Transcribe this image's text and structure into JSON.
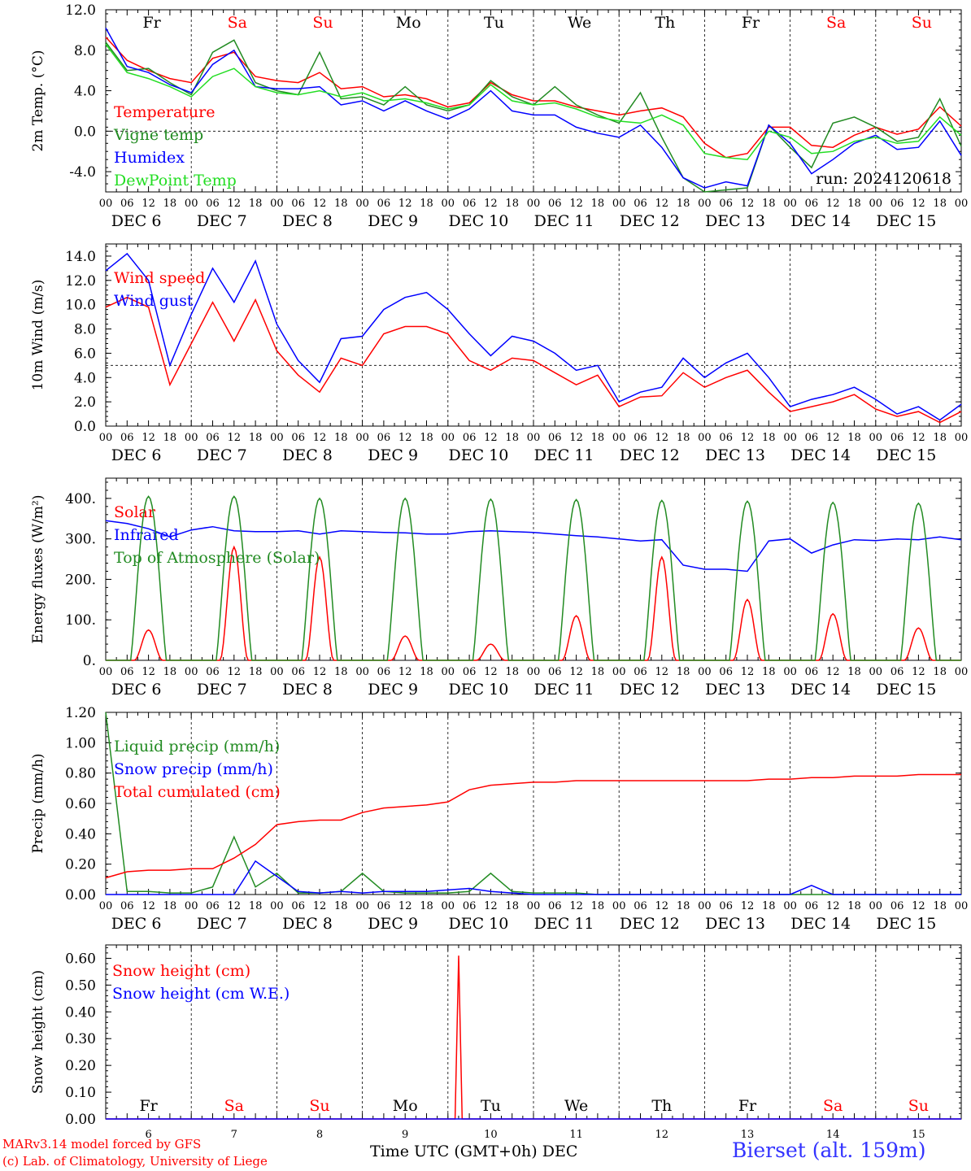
{
  "footer": {
    "model": "MARv3.14 model forced by GFS",
    "lab": "(c) Lab. of Climatology, University of Liege",
    "xlabel": "Time UTC (GMT+0h)",
    "month": "DEC",
    "station": "Bierset (alt. 159m)"
  },
  "run": "run: 2024120618",
  "weekdays": [
    "Fr",
    "Sa",
    "Su",
    "Mo",
    "Tu",
    "We",
    "Th",
    "Fr",
    "Sa",
    "Su"
  ],
  "weekday_colors": [
    "#000000",
    "#ff0000",
    "#ff0000",
    "#000000",
    "#000000",
    "#000000",
    "#000000",
    "#000000",
    "#ff0000",
    "#ff0000"
  ],
  "dates": [
    "DEC  6",
    "DEC  7",
    "DEC  8",
    "DEC  9",
    "DEC 10",
    "DEC 11",
    "DEC 12",
    "DEC 13",
    "DEC 14",
    "DEC 15"
  ],
  "date_numbers": [
    "6",
    "7",
    "8",
    "9",
    "10",
    "11",
    "12",
    "13",
    "14",
    "15"
  ],
  "hour_labels": [
    "00",
    "06",
    "12",
    "18"
  ],
  "chart_data": [
    {
      "type": "line",
      "ylabel": "2m Temp. (°C)",
      "ylim": [
        -6,
        12
      ],
      "yticks": [
        -4,
        0,
        4,
        8,
        12
      ],
      "ytick_labels": [
        "-4.0",
        "0.0",
        "4.0",
        "8.0",
        "12.0"
      ],
      "ref_line": 0,
      "x_hours": [
        0,
        6,
        12,
        18,
        24,
        30,
        36,
        42,
        48,
        54,
        60,
        66,
        72,
        78,
        84,
        90,
        96,
        102,
        108,
        114,
        120,
        126,
        132,
        138,
        144,
        150,
        156,
        162,
        168,
        174,
        180,
        186,
        192,
        198,
        204,
        210,
        216,
        222,
        228,
        234,
        240
      ],
      "series": [
        {
          "name": "Temperature",
          "color": "#ff0000",
          "values": [
            9.3,
            7.0,
            6.0,
            5.2,
            4.8,
            7.2,
            7.8,
            5.4,
            5.0,
            4.8,
            5.8,
            4.2,
            4.4,
            3.4,
            3.6,
            3.2,
            2.4,
            2.8,
            4.8,
            3.6,
            3.0,
            3.0,
            2.4,
            2.0,
            1.6,
            2.0,
            2.3,
            1.4,
            -1.2,
            -2.6,
            -2.2,
            0.4,
            0.4,
            -1.4,
            -1.6,
            -0.4,
            0.4,
            -0.3,
            0.2,
            2.4,
            0.5
          ]
        },
        {
          "name": "Vigne temp",
          "color": "#228b22",
          "values": [
            8.8,
            6.0,
            6.2,
            4.8,
            3.6,
            7.8,
            9.0,
            4.8,
            4.0,
            3.6,
            7.8,
            3.2,
            3.4,
            2.6,
            4.4,
            2.6,
            2.0,
            2.6,
            5.0,
            3.4,
            2.6,
            4.4,
            2.6,
            1.6,
            0.8,
            3.8,
            -0.6,
            -4.6,
            -6.0,
            -5.8,
            -5.6,
            0.6,
            -1.6,
            -3.6,
            0.8,
            1.4,
            0.4,
            -1.0,
            -0.6,
            3.2,
            -1.5
          ]
        },
        {
          "name": "Humidex",
          "color": "#0000ff",
          "values": [
            10.2,
            6.4,
            5.8,
            4.6,
            3.8,
            6.6,
            8.0,
            4.4,
            4.2,
            4.2,
            4.4,
            2.6,
            3.0,
            2.0,
            3.0,
            2.0,
            1.2,
            2.2,
            4.0,
            2.0,
            1.6,
            1.6,
            0.4,
            -0.2,
            -0.6,
            0.6,
            -1.6,
            -4.6,
            -5.6,
            -5.0,
            -5.4,
            0.6,
            -1.2,
            -4.2,
            -2.8,
            -1.2,
            -0.4,
            -1.8,
            -1.6,
            1.0,
            -2.4
          ]
        },
        {
          "name": "DewPoint Temp",
          "color": "#22dd22",
          "values": [
            8.6,
            5.8,
            5.2,
            4.4,
            3.4,
            5.4,
            6.2,
            4.4,
            3.8,
            3.6,
            4.0,
            3.4,
            3.8,
            3.0,
            3.2,
            2.8,
            2.2,
            2.6,
            4.6,
            3.0,
            2.6,
            2.8,
            2.2,
            1.4,
            1.0,
            0.8,
            1.6,
            0.6,
            -2.2,
            -2.6,
            -2.8,
            0.0,
            -0.6,
            -2.2,
            -2.0,
            -1.0,
            -0.6,
            -1.2,
            -1.0,
            1.4,
            -0.4
          ]
        }
      ]
    },
    {
      "type": "line",
      "ylabel": "10m Wind (m/s)",
      "ylim": [
        0,
        15
      ],
      "yticks": [
        0,
        2,
        4,
        6,
        8,
        10,
        12,
        14
      ],
      "ytick_labels": [
        "0.0",
        "2.0",
        "4.0",
        "6.0",
        "8.0",
        "10.0",
        "12.0",
        "14.0"
      ],
      "ref_line": 5,
      "x_hours": [
        0,
        6,
        12,
        18,
        24,
        30,
        36,
        42,
        48,
        54,
        60,
        66,
        72,
        78,
        84,
        90,
        96,
        102,
        108,
        114,
        120,
        126,
        132,
        138,
        144,
        150,
        156,
        162,
        168,
        174,
        180,
        186,
        192,
        198,
        204,
        210,
        216,
        222,
        228,
        234,
        240
      ],
      "series": [
        {
          "name": "Wind speed",
          "color": "#ff0000",
          "values": [
            9.8,
            10.6,
            9.8,
            3.4,
            6.8,
            10.2,
            7.0,
            10.4,
            6.2,
            4.2,
            2.8,
            5.6,
            5.0,
            7.6,
            8.2,
            8.2,
            7.6,
            5.4,
            4.6,
            5.6,
            5.4,
            4.4,
            3.4,
            4.2,
            1.6,
            2.4,
            2.5,
            4.4,
            3.2,
            4.0,
            4.6,
            2.8,
            1.2,
            1.6,
            2.0,
            2.6,
            1.4,
            0.8,
            1.2,
            0.3,
            1.2
          ]
        },
        {
          "name": "Wind gust",
          "color": "#0000ff",
          "values": [
            12.8,
            14.2,
            12.0,
            5.0,
            9.2,
            13.0,
            10.2,
            13.6,
            8.4,
            5.4,
            3.6,
            7.2,
            7.4,
            9.6,
            10.6,
            11.0,
            9.6,
            7.6,
            5.8,
            7.4,
            7.0,
            6.0,
            4.6,
            5.0,
            2.0,
            2.8,
            3.2,
            5.6,
            4.0,
            5.2,
            6.0,
            4.0,
            1.6,
            2.2,
            2.6,
            3.2,
            2.2,
            1.0,
            1.6,
            0.5,
            1.8
          ]
        }
      ]
    },
    {
      "type": "line",
      "ylabel": "Energy fluxes (W/m²)",
      "ylim": [
        0,
        450
      ],
      "yticks": [
        0,
        100,
        200,
        300,
        400
      ],
      "ytick_labels": [
        "0.",
        "100.",
        "200.",
        "300.",
        "400."
      ],
      "infrared_hours": [
        0,
        6,
        12,
        18,
        24,
        30,
        36,
        42,
        48,
        54,
        60,
        66,
        72,
        78,
        84,
        90,
        96,
        102,
        108,
        114,
        120,
        126,
        132,
        138,
        144,
        150,
        156,
        162,
        168,
        174,
        180,
        186,
        192,
        198,
        204,
        210,
        216,
        222,
        228,
        234,
        240
      ],
      "series": [
        {
          "name": "Solar",
          "color": "#ff0000",
          "daily_peaks": [
            75,
            280,
            255,
            60,
            40,
            110,
            255,
            150,
            115,
            80
          ]
        },
        {
          "name": "Infrared",
          "color": "#0000ff",
          "values": [
            345,
            338,
            325,
            305,
            322,
            330,
            320,
            318,
            318,
            320,
            312,
            320,
            318,
            316,
            315,
            312,
            312,
            318,
            320,
            318,
            316,
            312,
            308,
            305,
            300,
            295,
            298,
            235,
            225,
            225,
            220,
            295,
            300,
            265,
            285,
            298,
            296,
            300,
            298,
            305,
            298
          ]
        },
        {
          "name": "Top of Atmosphere (Solar)",
          "color": "#228b22",
          "daily_peaks": [
            405,
            405,
            400,
            400,
            398,
            397,
            395,
            393,
            390,
            388
          ]
        }
      ]
    },
    {
      "type": "line",
      "ylabel": "Precip (mm/h)",
      "ylim": [
        0,
        1.2
      ],
      "yticks": [
        0,
        0.2,
        0.4,
        0.6,
        0.8,
        1.0,
        1.2
      ],
      "ytick_labels": [
        "0.00",
        "0.20",
        "0.40",
        "0.60",
        "0.80",
        "1.00",
        "1.20"
      ],
      "x_hours": [
        0,
        6,
        12,
        18,
        24,
        30,
        36,
        42,
        48,
        54,
        60,
        66,
        72,
        78,
        84,
        90,
        96,
        102,
        108,
        114,
        120,
        126,
        132,
        138,
        144,
        150,
        156,
        162,
        168,
        174,
        180,
        186,
        192,
        198,
        204,
        210,
        216,
        222,
        228,
        234,
        240
      ],
      "series": [
        {
          "name": "Liquid precip (mm/h)",
          "color": "#228b22",
          "values": [
            1.2,
            0.02,
            0.02,
            0.01,
            0.01,
            0.05,
            0.38,
            0.05,
            0.14,
            0.01,
            0.01,
            0.02,
            0.14,
            0.02,
            0.01,
            0.01,
            0.01,
            0.02,
            0.14,
            0.02,
            0.01,
            0.01,
            0.01,
            0.0,
            0.0,
            0.0,
            0.0,
            0.0,
            0.0,
            0.0,
            0.0,
            0.0,
            0.0,
            0.0,
            0.0,
            0.0,
            0.0,
            0.0,
            0.0,
            0.0,
            0.0
          ]
        },
        {
          "name": "Snow precip (mm/h)",
          "color": "#0000ff",
          "values": [
            0.0,
            0.0,
            0.0,
            0.0,
            0.0,
            0.0,
            0.0,
            0.22,
            0.12,
            0.02,
            0.01,
            0.02,
            0.01,
            0.02,
            0.02,
            0.02,
            0.03,
            0.04,
            0.02,
            0.01,
            0.0,
            0.0,
            0.0,
            0.0,
            0.0,
            0.0,
            0.0,
            0.0,
            0.0,
            0.0,
            0.0,
            0.0,
            0.0,
            0.06,
            0.0,
            0.0,
            0.0,
            0.0,
            0.0,
            0.0,
            0.0
          ]
        },
        {
          "name": "Total cumulated (cm)",
          "color": "#ff0000",
          "values": [
            0.11,
            0.15,
            0.16,
            0.16,
            0.17,
            0.17,
            0.24,
            0.33,
            0.46,
            0.48,
            0.49,
            0.49,
            0.54,
            0.57,
            0.58,
            0.59,
            0.61,
            0.69,
            0.72,
            0.73,
            0.74,
            0.74,
            0.75,
            0.75,
            0.75,
            0.75,
            0.75,
            0.75,
            0.75,
            0.75,
            0.75,
            0.76,
            0.76,
            0.77,
            0.77,
            0.78,
            0.78,
            0.78,
            0.79,
            0.79,
            0.79
          ]
        }
      ]
    },
    {
      "type": "line",
      "ylabel": "Snow height (cm)",
      "ylim": [
        0,
        0.65
      ],
      "yticks": [
        0,
        0.1,
        0.2,
        0.3,
        0.4,
        0.5,
        0.6
      ],
      "ytick_labels": [
        "0.00",
        "0.10",
        "0.20",
        "0.30",
        "0.40",
        "0.50",
        "0.60"
      ],
      "series": [
        {
          "name": "Snow height (cm)",
          "color": "#ff0000",
          "points": [
            [
              0,
              0
            ],
            [
              98,
              0
            ],
            [
              99,
              0.61
            ],
            [
              100,
              0
            ],
            [
              240,
              0
            ]
          ]
        },
        {
          "name": "Snow height (cm W.E.)",
          "color": "#0000ff",
          "points": [
            [
              0,
              0
            ],
            [
              240,
              0
            ]
          ]
        }
      ]
    }
  ]
}
